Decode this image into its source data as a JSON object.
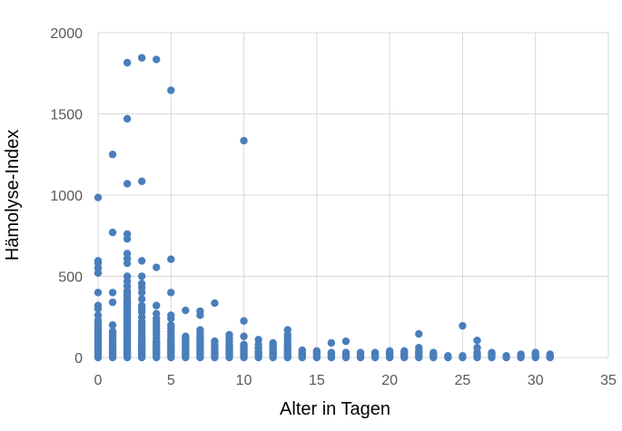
{
  "chart_data": {
    "type": "scatter",
    "title": "",
    "xlabel": "Alter in Tagen",
    "ylabel": "Hämolyse-Index",
    "xlim": [
      0,
      35
    ],
    "ylim": [
      0,
      2000
    ],
    "x_ticks": [
      0,
      5,
      10,
      15,
      20,
      25,
      30,
      35
    ],
    "y_ticks": [
      0,
      500,
      1000,
      1500,
      2000
    ],
    "grid": true,
    "legend": "none",
    "marker_color": "#4a7ebb",
    "series": [
      {
        "points": [
          [
            0,
            0
          ],
          [
            0,
            10
          ],
          [
            0,
            20
          ],
          [
            0,
            30
          ],
          [
            0,
            40
          ],
          [
            0,
            50
          ],
          [
            0,
            60
          ],
          [
            0,
            70
          ],
          [
            0,
            80
          ],
          [
            0,
            90
          ],
          [
            0,
            100
          ],
          [
            0,
            110
          ],
          [
            0,
            120
          ],
          [
            0,
            130
          ],
          [
            0,
            140
          ],
          [
            0,
            150
          ],
          [
            0,
            160
          ],
          [
            0,
            175
          ],
          [
            0,
            190
          ],
          [
            0,
            210
          ],
          [
            0,
            230
          ],
          [
            0,
            260
          ],
          [
            0,
            300
          ],
          [
            0,
            320
          ],
          [
            0,
            400
          ],
          [
            0,
            520
          ],
          [
            0,
            550
          ],
          [
            0,
            580
          ],
          [
            0,
            595
          ],
          [
            0,
            985
          ],
          [
            1,
            0
          ],
          [
            1,
            10
          ],
          [
            1,
            20
          ],
          [
            1,
            30
          ],
          [
            1,
            40
          ],
          [
            1,
            50
          ],
          [
            1,
            60
          ],
          [
            1,
            70
          ],
          [
            1,
            80
          ],
          [
            1,
            90
          ],
          [
            1,
            100
          ],
          [
            1,
            110
          ],
          [
            1,
            120
          ],
          [
            1,
            130
          ],
          [
            1,
            140
          ],
          [
            1,
            150
          ],
          [
            1,
            160
          ],
          [
            1,
            200
          ],
          [
            1,
            340
          ],
          [
            1,
            400
          ],
          [
            1,
            770
          ],
          [
            1,
            1250
          ],
          [
            2,
            0
          ],
          [
            2,
            10
          ],
          [
            2,
            20
          ],
          [
            2,
            30
          ],
          [
            2,
            40
          ],
          [
            2,
            50
          ],
          [
            2,
            60
          ],
          [
            2,
            70
          ],
          [
            2,
            80
          ],
          [
            2,
            90
          ],
          [
            2,
            100
          ],
          [
            2,
            110
          ],
          [
            2,
            120
          ],
          [
            2,
            130
          ],
          [
            2,
            140
          ],
          [
            2,
            150
          ],
          [
            2,
            160
          ],
          [
            2,
            170
          ],
          [
            2,
            180
          ],
          [
            2,
            190
          ],
          [
            2,
            200
          ],
          [
            2,
            210
          ],
          [
            2,
            220
          ],
          [
            2,
            230
          ],
          [
            2,
            240
          ],
          [
            2,
            250
          ],
          [
            2,
            260
          ],
          [
            2,
            270
          ],
          [
            2,
            280
          ],
          [
            2,
            290
          ],
          [
            2,
            300
          ],
          [
            2,
            310
          ],
          [
            2,
            320
          ],
          [
            2,
            330
          ],
          [
            2,
            340
          ],
          [
            2,
            350
          ],
          [
            2,
            360
          ],
          [
            2,
            380
          ],
          [
            2,
            395
          ],
          [
            2,
            410
          ],
          [
            2,
            440
          ],
          [
            2,
            470
          ],
          [
            2,
            500
          ],
          [
            2,
            580
          ],
          [
            2,
            610
          ],
          [
            2,
            640
          ],
          [
            2,
            730
          ],
          [
            2,
            760
          ],
          [
            2,
            1070
          ],
          [
            2,
            1470
          ],
          [
            2,
            1815
          ],
          [
            3,
            0
          ],
          [
            3,
            10
          ],
          [
            3,
            20
          ],
          [
            3,
            30
          ],
          [
            3,
            40
          ],
          [
            3,
            50
          ],
          [
            3,
            60
          ],
          [
            3,
            70
          ],
          [
            3,
            80
          ],
          [
            3,
            90
          ],
          [
            3,
            100
          ],
          [
            3,
            110
          ],
          [
            3,
            120
          ],
          [
            3,
            140
          ],
          [
            3,
            160
          ],
          [
            3,
            180
          ],
          [
            3,
            200
          ],
          [
            3,
            220
          ],
          [
            3,
            250
          ],
          [
            3,
            280
          ],
          [
            3,
            300
          ],
          [
            3,
            320
          ],
          [
            3,
            360
          ],
          [
            3,
            400
          ],
          [
            3,
            430
          ],
          [
            3,
            455
          ],
          [
            3,
            500
          ],
          [
            3,
            595
          ],
          [
            3,
            1085
          ],
          [
            3,
            1845
          ],
          [
            4,
            0
          ],
          [
            4,
            10
          ],
          [
            4,
            20
          ],
          [
            4,
            30
          ],
          [
            4,
            40
          ],
          [
            4,
            50
          ],
          [
            4,
            60
          ],
          [
            4,
            70
          ],
          [
            4,
            80
          ],
          [
            4,
            90
          ],
          [
            4,
            100
          ],
          [
            4,
            120
          ],
          [
            4,
            140
          ],
          [
            4,
            160
          ],
          [
            4,
            180
          ],
          [
            4,
            200
          ],
          [
            4,
            220
          ],
          [
            4,
            240
          ],
          [
            4,
            270
          ],
          [
            4,
            320
          ],
          [
            4,
            555
          ],
          [
            4,
            1835
          ],
          [
            5,
            0
          ],
          [
            5,
            10
          ],
          [
            5,
            20
          ],
          [
            5,
            30
          ],
          [
            5,
            40
          ],
          [
            5,
            50
          ],
          [
            5,
            60
          ],
          [
            5,
            70
          ],
          [
            5,
            80
          ],
          [
            5,
            90
          ],
          [
            5,
            100
          ],
          [
            5,
            110
          ],
          [
            5,
            120
          ],
          [
            5,
            140
          ],
          [
            5,
            160
          ],
          [
            5,
            180
          ],
          [
            5,
            200
          ],
          [
            5,
            240
          ],
          [
            5,
            260
          ],
          [
            5,
            400
          ],
          [
            5,
            605
          ],
          [
            5,
            1645
          ],
          [
            6,
            0
          ],
          [
            6,
            10
          ],
          [
            6,
            20
          ],
          [
            6,
            30
          ],
          [
            6,
            40
          ],
          [
            6,
            50
          ],
          [
            6,
            60
          ],
          [
            6,
            70
          ],
          [
            6,
            80
          ],
          [
            6,
            90
          ],
          [
            6,
            100
          ],
          [
            6,
            110
          ],
          [
            6,
            120
          ],
          [
            6,
            130
          ],
          [
            6,
            290
          ],
          [
            7,
            0
          ],
          [
            7,
            10
          ],
          [
            7,
            20
          ],
          [
            7,
            30
          ],
          [
            7,
            40
          ],
          [
            7,
            50
          ],
          [
            7,
            60
          ],
          [
            7,
            70
          ],
          [
            7,
            80
          ],
          [
            7,
            90
          ],
          [
            7,
            100
          ],
          [
            7,
            110
          ],
          [
            7,
            120
          ],
          [
            7,
            135
          ],
          [
            7,
            150
          ],
          [
            7,
            170
          ],
          [
            7,
            260
          ],
          [
            7,
            285
          ],
          [
            8,
            0
          ],
          [
            8,
            10
          ],
          [
            8,
            20
          ],
          [
            8,
            30
          ],
          [
            8,
            40
          ],
          [
            8,
            50
          ],
          [
            8,
            60
          ],
          [
            8,
            80
          ],
          [
            8,
            100
          ],
          [
            8,
            335
          ],
          [
            9,
            0
          ],
          [
            9,
            10
          ],
          [
            9,
            20
          ],
          [
            9,
            30
          ],
          [
            9,
            40
          ],
          [
            9,
            50
          ],
          [
            9,
            60
          ],
          [
            9,
            70
          ],
          [
            9,
            80
          ],
          [
            9,
            100
          ],
          [
            9,
            120
          ],
          [
            9,
            140
          ],
          [
            10,
            0
          ],
          [
            10,
            10
          ],
          [
            10,
            20
          ],
          [
            10,
            30
          ],
          [
            10,
            40
          ],
          [
            10,
            50
          ],
          [
            10,
            60
          ],
          [
            10,
            70
          ],
          [
            10,
            80
          ],
          [
            10,
            130
          ],
          [
            10,
            225
          ],
          [
            10,
            1335
          ],
          [
            11,
            0
          ],
          [
            11,
            10
          ],
          [
            11,
            20
          ],
          [
            11,
            30
          ],
          [
            11,
            40
          ],
          [
            11,
            60
          ],
          [
            11,
            80
          ],
          [
            11,
            110
          ],
          [
            12,
            0
          ],
          [
            12,
            10
          ],
          [
            12,
            20
          ],
          [
            12,
            30
          ],
          [
            12,
            40
          ],
          [
            12,
            50
          ],
          [
            12,
            60
          ],
          [
            12,
            70
          ],
          [
            12,
            90
          ],
          [
            13,
            0
          ],
          [
            13,
            10
          ],
          [
            13,
            20
          ],
          [
            13,
            30
          ],
          [
            13,
            40
          ],
          [
            13,
            50
          ],
          [
            13,
            60
          ],
          [
            13,
            80
          ],
          [
            13,
            100
          ],
          [
            13,
            120
          ],
          [
            13,
            140
          ],
          [
            13,
            170
          ],
          [
            14,
            0
          ],
          [
            14,
            10
          ],
          [
            14,
            20
          ],
          [
            14,
            30
          ],
          [
            14,
            45
          ],
          [
            15,
            0
          ],
          [
            15,
            10
          ],
          [
            15,
            20
          ],
          [
            15,
            30
          ],
          [
            15,
            40
          ],
          [
            16,
            0
          ],
          [
            16,
            10
          ],
          [
            16,
            20
          ],
          [
            16,
            30
          ],
          [
            16,
            90
          ],
          [
            17,
            0
          ],
          [
            17,
            10
          ],
          [
            17,
            20
          ],
          [
            17,
            30
          ],
          [
            17,
            100
          ],
          [
            18,
            0
          ],
          [
            18,
            10
          ],
          [
            18,
            20
          ],
          [
            18,
            30
          ],
          [
            19,
            0
          ],
          [
            19,
            10
          ],
          [
            19,
            20
          ],
          [
            19,
            30
          ],
          [
            20,
            0
          ],
          [
            20,
            10
          ],
          [
            20,
            20
          ],
          [
            20,
            30
          ],
          [
            20,
            40
          ],
          [
            21,
            0
          ],
          [
            21,
            10
          ],
          [
            21,
            20
          ],
          [
            21,
            30
          ],
          [
            21,
            40
          ],
          [
            22,
            0
          ],
          [
            22,
            10
          ],
          [
            22,
            20
          ],
          [
            22,
            30
          ],
          [
            22,
            40
          ],
          [
            22,
            60
          ],
          [
            22,
            145
          ],
          [
            23,
            0
          ],
          [
            23,
            10
          ],
          [
            23,
            20
          ],
          [
            23,
            30
          ],
          [
            24,
            0
          ],
          [
            24,
            10
          ],
          [
            25,
            0
          ],
          [
            25,
            10
          ],
          [
            25,
            195
          ],
          [
            26,
            0
          ],
          [
            26,
            10
          ],
          [
            26,
            20
          ],
          [
            26,
            30
          ],
          [
            26,
            60
          ],
          [
            26,
            105
          ],
          [
            27,
            0
          ],
          [
            27,
            10
          ],
          [
            27,
            20
          ],
          [
            27,
            30
          ],
          [
            28,
            0
          ],
          [
            28,
            10
          ],
          [
            29,
            0
          ],
          [
            29,
            10
          ],
          [
            29,
            20
          ],
          [
            30,
            0
          ],
          [
            30,
            10
          ],
          [
            30,
            20
          ],
          [
            30,
            30
          ],
          [
            31,
            0
          ],
          [
            31,
            10
          ],
          [
            31,
            20
          ]
        ]
      }
    ]
  }
}
